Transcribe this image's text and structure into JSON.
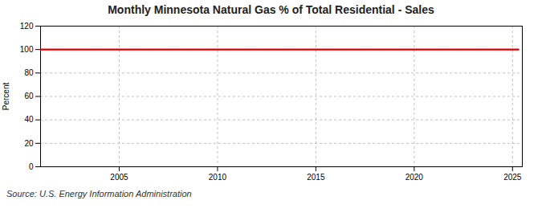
{
  "chart_data": {
    "type": "line",
    "title": "Monthly Minnesota Natural Gas % of Total Residential - Sales",
    "ylabel": "Percent",
    "source": "Source: U.S. Energy Information Administration",
    "x": [
      2001,
      2025.3
    ],
    "series": [
      {
        "name": "Natural Gas % of Total Residential - Sales",
        "color": "#dd0000",
        "values": [
          100,
          100
        ]
      }
    ],
    "xlim": [
      2001,
      2025.5
    ],
    "ylim": [
      0,
      120
    ],
    "xticks": [
      2005,
      2010,
      2015,
      2020,
      2025
    ],
    "yticks": [
      0,
      20,
      40,
      60,
      80,
      100,
      120
    ],
    "grid": true
  }
}
